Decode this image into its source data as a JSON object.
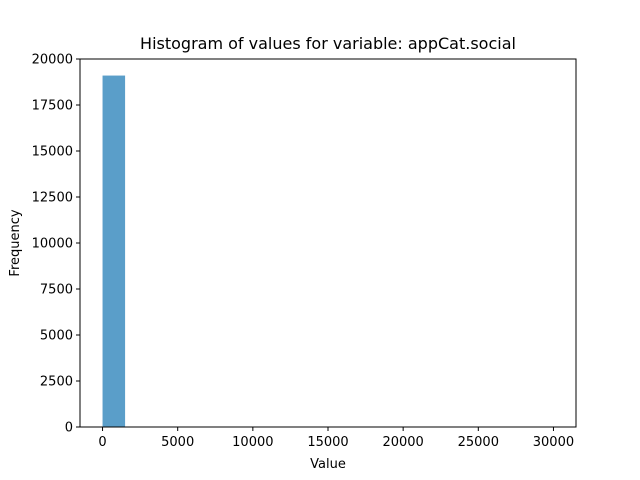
{
  "chart_data": {
    "type": "bar",
    "title": "Histogram of values for variable: appCat.social",
    "xlabel": "Value",
    "ylabel": "Frequency",
    "xlim": [
      -1500,
      31500
    ],
    "ylim": [
      0,
      20000
    ],
    "xticks": [
      0,
      5000,
      10000,
      15000,
      20000,
      25000,
      30000
    ],
    "yticks": [
      0,
      2500,
      5000,
      7500,
      10000,
      12500,
      15000,
      17500,
      20000
    ],
    "bins": [
      {
        "start": 0,
        "end": 1500,
        "count": 19100
      },
      {
        "start": 1500,
        "end": 3000,
        "count": 8
      },
      {
        "start": 3000,
        "end": 4500,
        "count": 2
      },
      {
        "start": 4500,
        "end": 6000,
        "count": 1
      },
      {
        "start": 6000,
        "end": 7500,
        "count": 0
      },
      {
        "start": 7500,
        "end": 9000,
        "count": 0
      },
      {
        "start": 9000,
        "end": 10500,
        "count": 0
      },
      {
        "start": 10500,
        "end": 12000,
        "count": 0
      },
      {
        "start": 12000,
        "end": 13500,
        "count": 0
      },
      {
        "start": 13500,
        "end": 15000,
        "count": 0
      },
      {
        "start": 15000,
        "end": 16500,
        "count": 0
      },
      {
        "start": 16500,
        "end": 18000,
        "count": 0
      },
      {
        "start": 18000,
        "end": 19500,
        "count": 0
      },
      {
        "start": 19500,
        "end": 21000,
        "count": 0
      },
      {
        "start": 21000,
        "end": 22500,
        "count": 0
      },
      {
        "start": 22500,
        "end": 24000,
        "count": 0
      },
      {
        "start": 24000,
        "end": 25500,
        "count": 0
      },
      {
        "start": 25500,
        "end": 27000,
        "count": 0
      },
      {
        "start": 27000,
        "end": 28500,
        "count": 0
      },
      {
        "start": 28500,
        "end": 30000,
        "count": 1
      }
    ],
    "bar_color": "#5a9ec9",
    "grid": false,
    "legend": "none"
  }
}
